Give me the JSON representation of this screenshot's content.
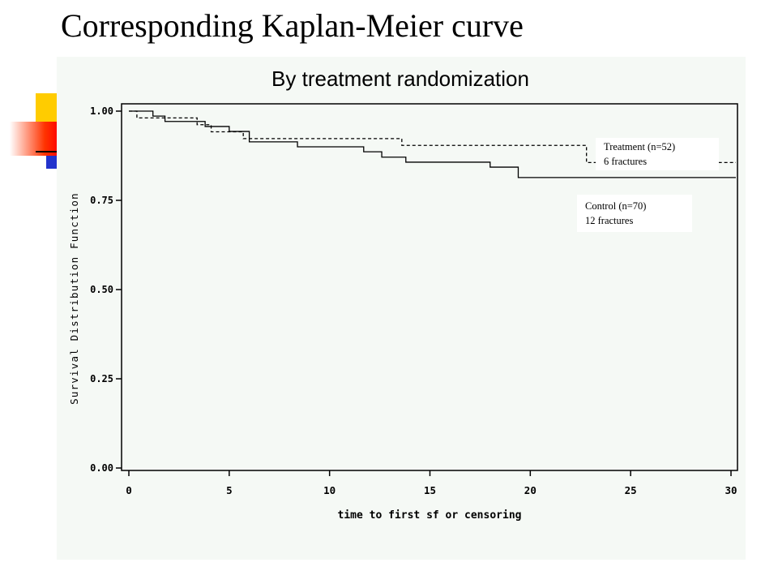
{
  "slide": {
    "title": "Corresponding Kaplan-Meier curve"
  },
  "chart_data": {
    "type": "line",
    "title": "By treatment randomization",
    "xlabel": "time to first sf or censoring",
    "ylabel": "Survival Distribution Function",
    "xlim": [
      0,
      30
    ],
    "ylim": [
      0,
      1
    ],
    "x_ticks": [
      0,
      5,
      10,
      15,
      20,
      25,
      30
    ],
    "x_tick_labels": [
      "0",
      "5",
      "10",
      "15",
      "20",
      "25",
      "30"
    ],
    "y_ticks": [
      0,
      0.25,
      0.5,
      0.75,
      1
    ],
    "y_tick_labels": [
      "0.00",
      "0.25",
      "0.50",
      "0.75",
      "1.00"
    ],
    "grid": false,
    "series": [
      {
        "name": "Control (n=70)",
        "annotation": "12 fractures",
        "style": "solid",
        "steps": [
          [
            0,
            1.0
          ],
          [
            1.2,
            0.986
          ],
          [
            1.8,
            0.971
          ],
          [
            3.8,
            0.957
          ],
          [
            5.0,
            0.943
          ],
          [
            6.0,
            0.914
          ],
          [
            8.4,
            0.9
          ],
          [
            11.7,
            0.886
          ],
          [
            12.6,
            0.871
          ],
          [
            13.8,
            0.857
          ],
          [
            18.0,
            0.843
          ],
          [
            19.4,
            0.814
          ],
          [
            30.4,
            0.814
          ]
        ]
      },
      {
        "name": "Treatment (n=52)",
        "annotation": "6 fractures",
        "style": "dashed",
        "steps": [
          [
            0,
            1.0
          ],
          [
            0.4,
            0.981
          ],
          [
            3.4,
            0.962
          ],
          [
            4.1,
            0.942
          ],
          [
            5.7,
            0.923
          ],
          [
            13.6,
            0.904
          ],
          [
            22.8,
            0.856
          ],
          [
            30.4,
            0.856
          ]
        ]
      }
    ]
  }
}
